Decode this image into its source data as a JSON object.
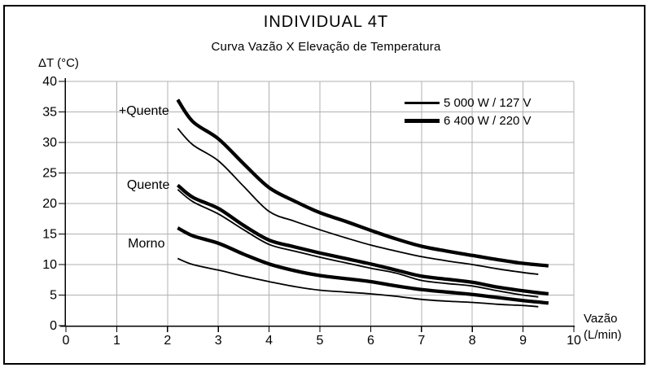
{
  "chart_data": {
    "type": "line",
    "title": "INDIVIDUAL 4T",
    "subtitle": "Curva Vazão X Elevação de Temperatura",
    "ylabel": "ΔT (°C)",
    "xlabel_line1": "Vazão",
    "xlabel_line2": "(L/min)",
    "xlim": [
      0,
      10
    ],
    "ylim": [
      0,
      40
    ],
    "x_ticks": [
      0,
      1,
      2,
      3,
      4,
      5,
      6,
      7,
      8,
      9,
      10
    ],
    "y_ticks": [
      0,
      5,
      10,
      15,
      20,
      25,
      30,
      35,
      40
    ],
    "grid": true,
    "colors": {
      "curve": "#000000",
      "grid": "#b0b0b0",
      "text": "#000000",
      "background": "#ffffff"
    },
    "legend": {
      "position": "top-right",
      "entries": [
        {
          "label": "5 000 W / 127 V",
          "style": "thin"
        },
        {
          "label": "6 400 W / 220 V",
          "style": "thick"
        }
      ]
    },
    "annotations": [
      {
        "text": "+Quente",
        "x": 1.04,
        "y": 34.9
      },
      {
        "text": "Quente",
        "x": 1.2,
        "y": 22.8
      },
      {
        "text": "Morno",
        "x": 1.22,
        "y": 13.2
      }
    ],
    "series": [
      {
        "name": "+Quente 6 400 W / 220 V",
        "group": "+Quente",
        "power": "6 400 W / 220 V",
        "style": "thick",
        "x": [
          2.2,
          2.5,
          3,
          3.5,
          4,
          4.5,
          5,
          5.5,
          6,
          6.5,
          7,
          7.5,
          8,
          8.5,
          9,
          9.5
        ],
        "y": [
          37,
          33.4,
          30.6,
          26.5,
          22.6,
          20.4,
          18.5,
          17.1,
          15.6,
          14.2,
          13,
          12.2,
          11.5,
          10.8,
          10.2,
          9.8
        ]
      },
      {
        "name": "+Quente 5 000 W / 127 V",
        "group": "+Quente",
        "power": "5 000 W / 127 V",
        "style": "thin",
        "x": [
          2.2,
          2.5,
          3,
          3.5,
          4,
          4.5,
          5,
          5.5,
          6,
          6.5,
          7,
          7.5,
          8,
          8.5,
          9,
          9.3
        ],
        "y": [
          32.3,
          29.6,
          27,
          22.8,
          18.7,
          17.1,
          15.7,
          14.4,
          13.2,
          12.2,
          11.3,
          10.6,
          10,
          9.3,
          8.7,
          8.4
        ]
      },
      {
        "name": "Quente 6 400 W / 220 V",
        "group": "Quente",
        "power": "6 400 W / 220 V",
        "style": "thick",
        "x": [
          2.2,
          2.5,
          3,
          3.5,
          4,
          4.5,
          5,
          5.5,
          6,
          6.5,
          7,
          7.5,
          8,
          8.5,
          9,
          9.5
        ],
        "y": [
          23,
          21,
          19.2,
          16.4,
          14,
          12.9,
          11.9,
          11,
          10.1,
          9.1,
          8.1,
          7.6,
          7.1,
          6.3,
          5.7,
          5.2
        ]
      },
      {
        "name": "Quente 5 000 W / 127 V",
        "group": "Quente",
        "power": "5 000 W / 127 V",
        "style": "thin",
        "x": [
          2.2,
          2.5,
          3,
          3.5,
          4,
          4.5,
          5,
          5.5,
          6,
          6.5,
          7,
          7.5,
          8,
          8.5,
          9,
          9.3
        ],
        "y": [
          22.3,
          20.3,
          18.3,
          15.7,
          13.3,
          12.2,
          11.2,
          10.3,
          9.4,
          8.6,
          7.4,
          6.9,
          6.5,
          5.7,
          5,
          4.7
        ]
      },
      {
        "name": "Morno 6 400 W / 220 V",
        "group": "Morno",
        "power": "6 400 W / 220 V",
        "style": "thick",
        "x": [
          2.2,
          2.5,
          3,
          3.5,
          4,
          4.5,
          5,
          5.5,
          6,
          6.5,
          7,
          7.5,
          8,
          8.5,
          9,
          9.5
        ],
        "y": [
          16,
          14.7,
          13.5,
          11.7,
          10.1,
          9,
          8.2,
          7.7,
          7.2,
          6.5,
          5.9,
          5.5,
          5.1,
          4.6,
          4.1,
          3.7
        ]
      },
      {
        "name": "Morno 5 000 W / 127 V",
        "group": "Morno",
        "power": "5 000 W / 127 V",
        "style": "thin",
        "x": [
          2.2,
          2.5,
          3,
          3.5,
          4,
          4.5,
          5,
          5.5,
          6,
          6.5,
          7,
          7.5,
          8,
          8.5,
          9,
          9.3
        ],
        "y": [
          11,
          10,
          9.1,
          8.1,
          7.2,
          6.4,
          5.8,
          5.5,
          5.2,
          4.8,
          4.3,
          4,
          3.8,
          3.5,
          3.3,
          3.1
        ]
      }
    ]
  }
}
